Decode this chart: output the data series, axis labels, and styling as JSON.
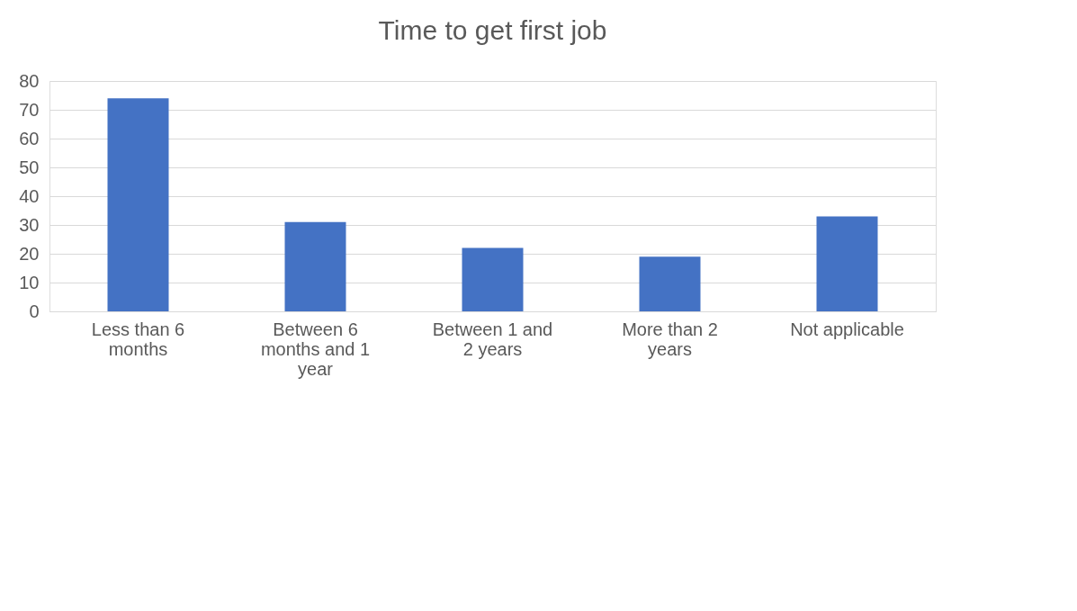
{
  "chart_data": {
    "type": "bar",
    "title": "Time to get first job",
    "categories": [
      "Less than 6 months",
      "Between 6 months and 1 year",
      "Between 1 and 2 years",
      "More than 2 years",
      "Not applicable"
    ],
    "values": [
      74,
      31,
      22,
      19,
      33
    ],
    "color": "#4472c4",
    "ylim": [
      0,
      80
    ],
    "yticks": [
      0,
      10,
      20,
      30,
      40,
      50,
      60,
      70,
      80
    ],
    "grid": "y"
  }
}
